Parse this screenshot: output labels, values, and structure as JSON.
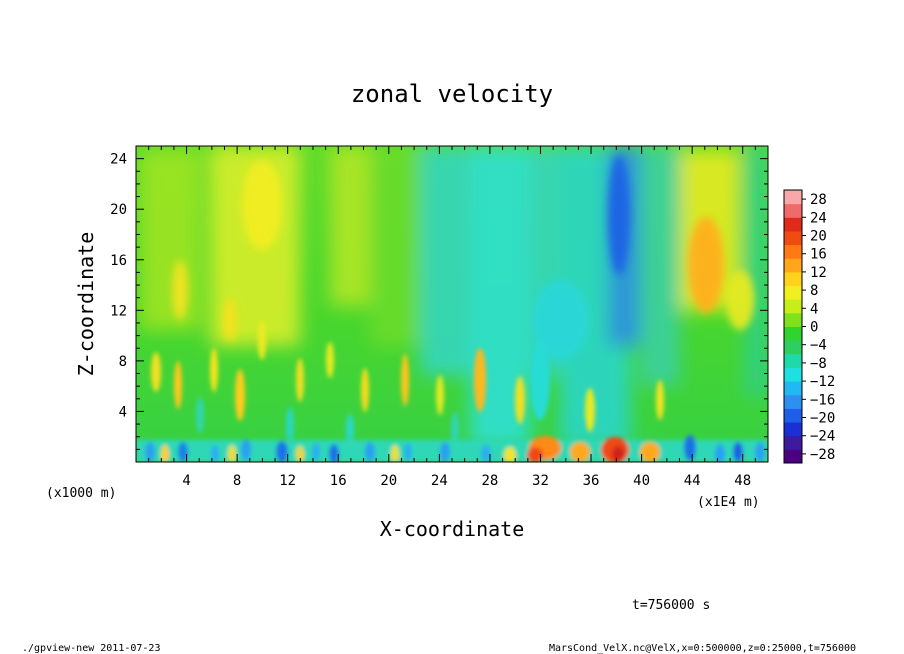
{
  "chart_data": {
    "type": "heatmap",
    "title": "zonal velocity",
    "xlabel": "X-coordinate",
    "ylabel": "Z-coordinate",
    "x_unit_label": "(x1E4 m)",
    "y_unit_label": "(x1000 m)",
    "xlim": [
      0,
      50
    ],
    "ylim": [
      0,
      25
    ],
    "x_ticks": [
      "4",
      "8",
      "12",
      "16",
      "20",
      "24",
      "28",
      "32",
      "36",
      "40",
      "44",
      "48"
    ],
    "y_ticks": [
      "4",
      "8",
      "12",
      "16",
      "20",
      "24"
    ],
    "colorbar": {
      "labels": [
        "28",
        "24",
        "20",
        "16",
        "12",
        "8",
        "4",
        "0",
        "−4",
        "−8",
        "−12",
        "−16",
        "−20",
        "−24",
        "−28"
      ],
      "range": [
        -30,
        30
      ],
      "colors": [
        "#4b0082",
        "#3d1a9e",
        "#1a2fd6",
        "#1f5fe8",
        "#2d8ff0",
        "#22b8f2",
        "#1ee0e0",
        "#20d9a8",
        "#2ccf60",
        "#2fd42f",
        "#7fe01c",
        "#c8ee1a",
        "#f0f020",
        "#ffd21e",
        "#ffa61a",
        "#ff7a14",
        "#f04c12",
        "#e02a1a",
        "#f06a6a",
        "#f8a8a8"
      ]
    },
    "annotation": "t=756000 s"
  },
  "footer": {
    "left": "./gpview-new   2011-07-23",
    "right": "MarsCond_VelX.nc@VelX,x=0:500000,z=0:25000,t=756000"
  }
}
